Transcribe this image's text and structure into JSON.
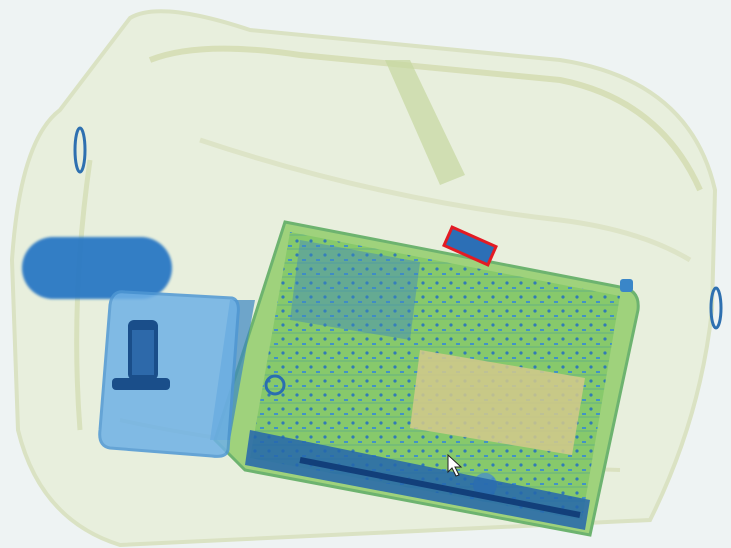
{
  "scene": {
    "type": "x-ray baggage scan",
    "colors": {
      "background": "#eef3f3",
      "bag_outline": "#cfd9a8",
      "organic": "#c8d88a",
      "laptop_green": "#8ccf6a",
      "laptop_blue": "#2f7fc4",
      "metal_blue": "#1f63ad",
      "light_blue": "#6fb1e6",
      "detection_box": "#e31b23"
    },
    "detection": {
      "label": ""
    },
    "cursor": {
      "icon": "mouse-pointer-icon"
    }
  }
}
